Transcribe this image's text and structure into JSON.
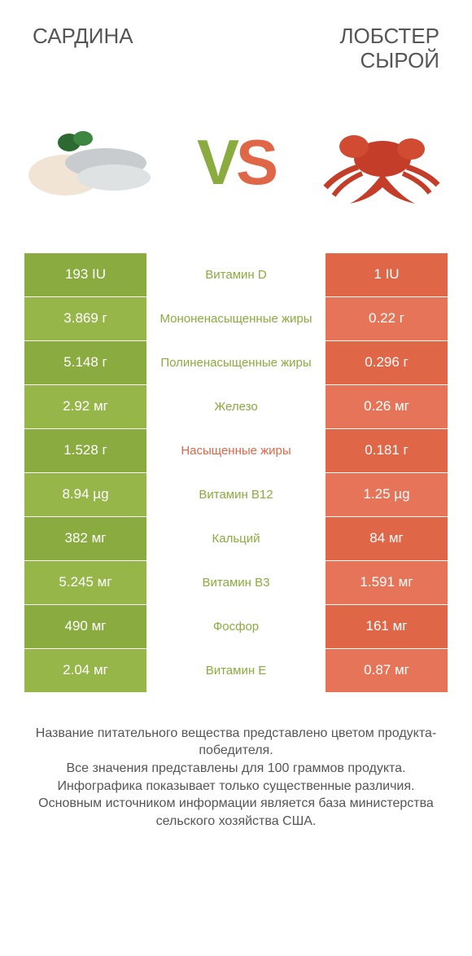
{
  "colors": {
    "green": "#8aab3f",
    "green_alt": "#97b64a",
    "orange": "#e06648",
    "orange_alt": "#e57458",
    "text_gray": "#555555",
    "white": "#ffffff"
  },
  "header": {
    "left_title": "САРДИНА",
    "right_title": "ЛОБСТЕР\nСЫРОЙ"
  },
  "vs": {
    "v": "V",
    "s": "S"
  },
  "rows": [
    {
      "left": "193 IU",
      "label": "Витамин D",
      "right": "1 IU",
      "winner": "left"
    },
    {
      "left": "3.869 г",
      "label": "Мононенасыщенные жиры",
      "right": "0.22 г",
      "winner": "left"
    },
    {
      "left": "5.148 г",
      "label": "Полиненасыщенные жиры",
      "right": "0.296 г",
      "winner": "left"
    },
    {
      "left": "2.92 мг",
      "label": "Железо",
      "right": "0.26 мг",
      "winner": "left"
    },
    {
      "left": "1.528 г",
      "label": "Насыщенные жиры",
      "right": "0.181 г",
      "winner": "right"
    },
    {
      "left": "8.94 µg",
      "label": "Витамин B12",
      "right": "1.25 µg",
      "winner": "left"
    },
    {
      "left": "382 мг",
      "label": "Кальций",
      "right": "84 мг",
      "winner": "left"
    },
    {
      "left": "5.245 мг",
      "label": "Витамин B3",
      "right": "1.591 мг",
      "winner": "left"
    },
    {
      "left": "490 мг",
      "label": "Фосфор",
      "right": "161 мг",
      "winner": "left"
    },
    {
      "left": "2.04 мг",
      "label": "Витамин E",
      "right": "0.87 мг",
      "winner": "left"
    }
  ],
  "footer": {
    "line1": "Название питательного вещества представлено цветом продукта-победителя.",
    "line2": "Все значения представлены для 100 граммов продукта.",
    "line3": "Инфографика показывает только существенные различия.",
    "line4": "Основным источником информации является база министерства сельского хозяйства США."
  }
}
